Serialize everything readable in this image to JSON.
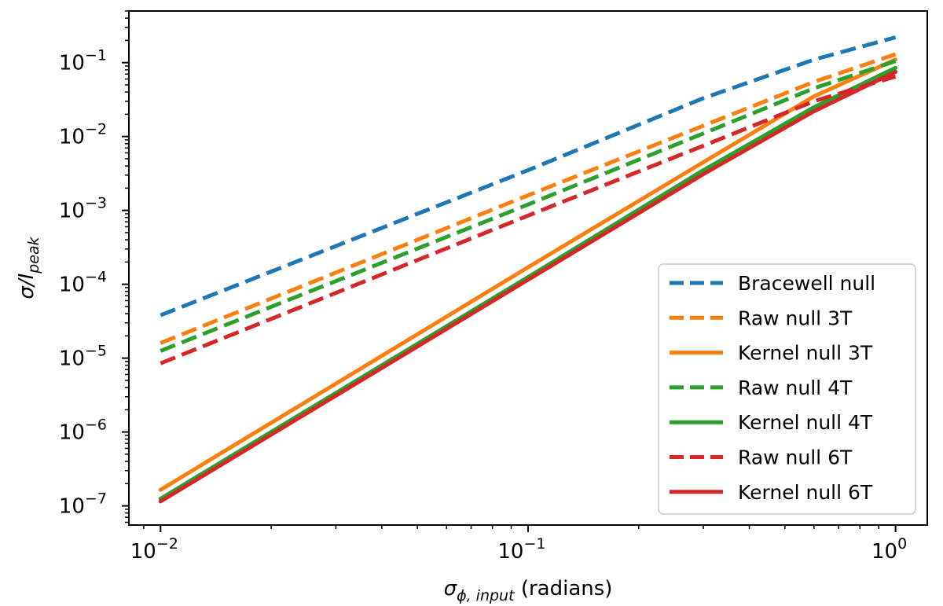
{
  "chart_data": {
    "type": "line",
    "xscale": "log",
    "yscale": "log",
    "xlim": [
      0.0082,
      1.22
    ],
    "ylim": [
      5.5e-08,
      0.5
    ],
    "xlabel": {
      "symbol": "σ",
      "subscript": "ϕ, input",
      "suffix": " (radians)"
    },
    "ylabel": {
      "prefix": "σ/I",
      "subscript": "peak"
    },
    "xticks": [
      {
        "value": 0.01,
        "base": "10",
        "exp": "−2"
      },
      {
        "value": 0.1,
        "base": "10",
        "exp": "−1"
      },
      {
        "value": 1,
        "base": "10",
        "exp": "0"
      }
    ],
    "yticks": [
      {
        "value": 1e-07,
        "base": "10",
        "exp": "−7"
      },
      {
        "value": 1e-06,
        "base": "10",
        "exp": "−6"
      },
      {
        "value": 1e-05,
        "base": "10",
        "exp": "−5"
      },
      {
        "value": 0.0001,
        "base": "10",
        "exp": "−4"
      },
      {
        "value": 0.001,
        "base": "10",
        "exp": "−3"
      },
      {
        "value": 0.01,
        "base": "10",
        "exp": "−2"
      },
      {
        "value": 0.1,
        "base": "10",
        "exp": "−1"
      }
    ],
    "legend_position": "lower-right",
    "series": [
      {
        "name": "Bracewell null",
        "color": "#1f77b4",
        "style": "dashed",
        "x": [
          0.01,
          0.1,
          0.3,
          0.6,
          1.0
        ],
        "y": [
          3.8e-05,
          0.0035,
          0.033,
          0.11,
          0.22
        ]
      },
      {
        "name": "Raw null 3T",
        "color": "#ff7f0e",
        "style": "dashed",
        "x": [
          0.01,
          0.1,
          0.3,
          0.6,
          1.0
        ],
        "y": [
          1.6e-05,
          0.0016,
          0.014,
          0.055,
          0.13
        ]
      },
      {
        "name": "Kernel null 3T",
        "color": "#ff7f0e",
        "style": "solid",
        "x": [
          0.01,
          0.1,
          0.3,
          0.6,
          1.0
        ],
        "y": [
          1.65e-07,
          0.00017,
          0.0045,
          0.035,
          0.11
        ]
      },
      {
        "name": "Raw null 4T",
        "color": "#2ca02c",
        "style": "dashed",
        "x": [
          0.01,
          0.1,
          0.3,
          0.6,
          1.0
        ],
        "y": [
          1.25e-05,
          0.0012,
          0.011,
          0.045,
          0.105
        ]
      },
      {
        "name": "Kernel null 4T",
        "color": "#2ca02c",
        "style": "solid",
        "x": [
          0.01,
          0.1,
          0.3,
          0.6,
          1.0
        ],
        "y": [
          1.25e-07,
          0.000125,
          0.0035,
          0.025,
          0.085
        ]
      },
      {
        "name": "Raw null 6T",
        "color": "#d62728",
        "style": "dashed",
        "x": [
          0.01,
          0.1,
          0.3,
          0.6,
          1.0
        ],
        "y": [
          8.5e-06,
          0.00085,
          0.0075,
          0.03,
          0.065
        ]
      },
      {
        "name": "Kernel null 6T",
        "color": "#d62728",
        "style": "solid",
        "x": [
          0.01,
          0.1,
          0.3,
          0.6,
          1.0
        ],
        "y": [
          1.15e-07,
          0.000115,
          0.0031,
          0.022,
          0.075
        ]
      }
    ]
  }
}
